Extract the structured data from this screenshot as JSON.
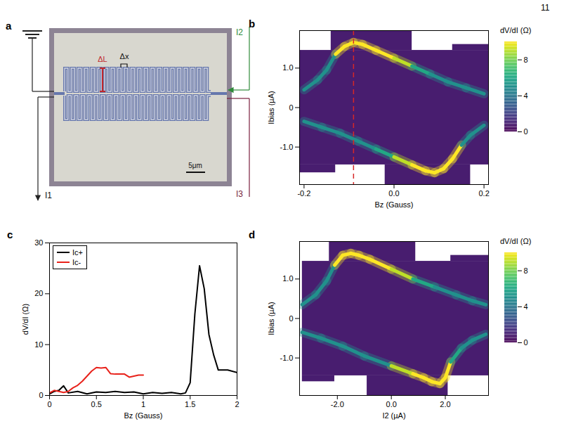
{
  "page_number": "11",
  "panel_a": {
    "panel": "a",
    "labels": {
      "delta_L": "ΔL",
      "delta_x": "Δx",
      "scale_bar": "5μm"
    },
    "currents": [
      "I1",
      "I2",
      "I3"
    ]
  },
  "chart_data": [
    {
      "panel": "b",
      "type": "heatmap",
      "xlabel": "Bz (Gauss)",
      "ylabel": "Ibias (µA)",
      "xlim": [
        -0.21,
        0.21
      ],
      "ylim": [
        -1.95,
        1.95
      ],
      "xticks": [
        -0.2,
        {
          "value": 0,
          "label": "0.0"
        },
        0.2
      ],
      "yticks": [
        {
          "value": -1,
          "label": "-1.0"
        },
        0,
        {
          "value": 1,
          "label": "1.0"
        }
      ],
      "colorbar": {
        "label": "dV/dI (Ω)",
        "range": [
          0,
          10
        ],
        "ticks": [
          0,
          4,
          8
        ]
      },
      "regions": [
        {
          "x": [
            -0.21,
            0.21
          ],
          "y": [
            -1.45,
            1.45
          ],
          "value": 0.8
        },
        {
          "x": [
            -0.14,
            0.04
          ],
          "y": [
            1.45,
            1.95
          ],
          "value": 0.8
        },
        {
          "x": [
            -0.02,
            0.17
          ],
          "y": [
            -1.95,
            -1.45
          ],
          "value": 0.8
        },
        {
          "x": [
            -0.21,
            -0.13
          ],
          "y": [
            -1.65,
            -1.45
          ],
          "value": 0.8
        },
        {
          "x": [
            0.13,
            0.21
          ],
          "y": [
            1.45,
            1.6
          ],
          "value": 0.8
        }
      ],
      "ridges": [
        {
          "x": [
            -0.2,
            -0.17,
            -0.15,
            -0.13,
            -0.11,
            -0.09,
            -0.07,
            -0.04,
            0.0,
            0.04,
            0.08,
            0.12,
            0.16,
            0.2
          ],
          "y": [
            0.45,
            0.7,
            0.95,
            1.35,
            1.55,
            1.65,
            1.6,
            1.45,
            1.25,
            1.05,
            0.85,
            0.65,
            0.5,
            0.35
          ],
          "dVdI": [
            5,
            5,
            5,
            10,
            10,
            10,
            10,
            10,
            9,
            6,
            5,
            5,
            5,
            5
          ]
        },
        {
          "x": [
            -0.2,
            -0.16,
            -0.12,
            -0.08,
            -0.04,
            0.0,
            0.04,
            0.07,
            0.09,
            0.11,
            0.13,
            0.15,
            0.17,
            0.2
          ],
          "y": [
            -0.35,
            -0.5,
            -0.65,
            -0.85,
            -1.05,
            -1.25,
            -1.45,
            -1.6,
            -1.65,
            -1.55,
            -1.3,
            -0.95,
            -0.7,
            -0.45
          ],
          "dVdI": [
            5,
            5,
            5,
            5,
            6,
            9,
            10,
            10,
            10,
            10,
            10,
            5,
            5,
            5
          ]
        }
      ],
      "vline": {
        "x": -0.09,
        "color": "#d62728"
      }
    },
    {
      "panel": "c",
      "type": "line",
      "xlabel": "Bz (Gauss)",
      "ylabel": "dV/dI (Ω)",
      "xlim": [
        0,
        2
      ],
      "ylim": [
        0,
        30
      ],
      "xticks": [
        0,
        0.5,
        1,
        1.5,
        2
      ],
      "yticks": [
        0,
        10,
        20,
        30
      ],
      "legend": "top-left",
      "series": [
        {
          "name": "Ic+",
          "color": "#000000",
          "x": [
            0,
            0.05,
            0.1,
            0.15,
            0.2,
            0.3,
            0.4,
            0.5,
            0.6,
            0.7,
            0.8,
            0.9,
            1.0,
            1.1,
            1.2,
            1.3,
            1.4,
            1.45,
            1.5,
            1.55,
            1.6,
            1.65,
            1.7,
            1.75,
            1.8,
            1.9,
            2.0
          ],
          "values": [
            0.3,
            0.8,
            1.0,
            1.9,
            0.5,
            0.8,
            0.3,
            0.7,
            0.6,
            0.8,
            0.6,
            0.7,
            0.3,
            0.6,
            0.4,
            0.6,
            0.3,
            0.5,
            2.5,
            16,
            25.5,
            21,
            12,
            8,
            5,
            5,
            4.5
          ]
        },
        {
          "name": "Ic-",
          "color": "#e8221b",
          "x": [
            0,
            0.05,
            0.1,
            0.15,
            0.2,
            0.25,
            0.3,
            0.35,
            0.4,
            0.45,
            0.5,
            0.55,
            0.6,
            0.65,
            0.7,
            0.75,
            0.8,
            0.85,
            0.9,
            0.95,
            1.0
          ],
          "values": [
            0.5,
            1.0,
            0.8,
            0.6,
            0.8,
            1.5,
            2.0,
            2.8,
            3.8,
            4.8,
            5.5,
            5.4,
            5.5,
            4.3,
            4.2,
            4.2,
            4.2,
            3.6,
            3.8,
            4.0,
            4.0
          ]
        }
      ]
    },
    {
      "panel": "d",
      "type": "heatmap",
      "xlabel": "I2 (µA)",
      "ylabel": "Ibias (µA)",
      "xlim": [
        -3.4,
        3.6
      ],
      "ylim": [
        -1.95,
        1.95
      ],
      "xticks": [
        {
          "value": -2,
          "label": "-2.0"
        },
        {
          "value": 0,
          "label": "0.0"
        },
        {
          "value": 2,
          "label": "2.0"
        }
      ],
      "yticks": [
        {
          "value": -1,
          "label": "-1.0"
        },
        0,
        {
          "value": 1,
          "label": "1.0"
        }
      ],
      "colorbar": {
        "label": "dV/dI (Ω)",
        "range": [
          0,
          10
        ],
        "ticks": [
          0,
          4,
          8
        ]
      },
      "regions": [
        {
          "x": [
            -3.3,
            3.6
          ],
          "y": [
            -1.45,
            1.45
          ],
          "value": 0.8
        },
        {
          "x": [
            -2.3,
            0.9
          ],
          "y": [
            1.45,
            1.95
          ],
          "value": 0.8
        },
        {
          "x": [
            -0.9,
            2.1
          ],
          "y": [
            -1.95,
            -1.45
          ],
          "value": 0.8
        },
        {
          "x": [
            -3.3,
            -2.1
          ],
          "y": [
            -1.6,
            -1.45
          ],
          "value": 0.8
        },
        {
          "x": [
            2.2,
            3.6
          ],
          "y": [
            1.45,
            1.6
          ],
          "value": 0.8
        }
      ],
      "ridges": [
        {
          "x": [
            -3.3,
            -2.8,
            -2.4,
            -2.1,
            -1.8,
            -1.5,
            -1.2,
            -0.8,
            0,
            0.8,
            1.6,
            2.4,
            3.0,
            3.5
          ],
          "y": [
            0.35,
            0.6,
            0.95,
            1.35,
            1.6,
            1.65,
            1.6,
            1.5,
            1.25,
            1.0,
            0.8,
            0.6,
            0.45,
            0.35
          ],
          "dVdI": [
            5,
            5,
            5,
            10,
            10,
            10,
            10,
            10,
            9,
            6,
            5,
            5,
            5,
            5
          ]
        },
        {
          "x": [
            -3.3,
            -2.6,
            -1.8,
            -1.0,
            0,
            0.8,
            1.2,
            1.5,
            1.8,
            2.0,
            2.2,
            2.6,
            3.0,
            3.5
          ],
          "y": [
            -0.35,
            -0.5,
            -0.7,
            -0.95,
            -1.2,
            -1.4,
            -1.5,
            -1.6,
            -1.65,
            -1.5,
            -1.1,
            -0.75,
            -0.55,
            -0.4
          ],
          "dVdI": [
            5,
            5,
            5,
            5,
            9,
            10,
            10,
            10,
            10,
            10,
            6,
            5,
            5,
            5
          ]
        }
      ]
    }
  ]
}
